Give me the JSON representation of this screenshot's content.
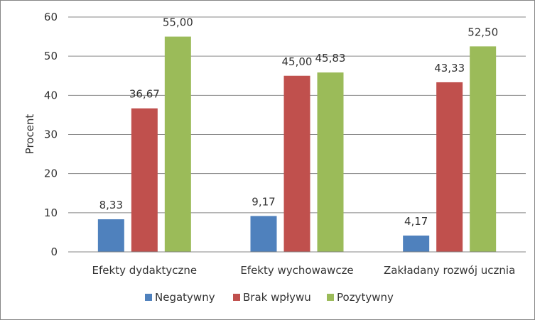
{
  "chart_data": {
    "type": "bar",
    "ylabel": "Procent",
    "ylim": [
      0,
      60
    ],
    "ytick_step": 10,
    "ytick_labels": [
      "0",
      "10",
      "20",
      "30",
      "40",
      "50",
      "60"
    ],
    "grid": true,
    "legend_position": "bottom",
    "categories": [
      "Efekty dydaktyczne",
      "Efekty wychowawcze",
      "Zakładany rozwój ucznia"
    ],
    "series": [
      {
        "name": "Negatywny",
        "color": "#4f81bd",
        "values": [
          8.33,
          9.17,
          4.17
        ],
        "labels": [
          "8,33",
          "9,17",
          "4,17"
        ]
      },
      {
        "name": "Brak wpływu",
        "color": "#c0504d",
        "values": [
          36.67,
          45.0,
          43.33
        ],
        "labels": [
          "36,67",
          "45,00",
          "43,33"
        ]
      },
      {
        "name": "Pozytywny",
        "color": "#9bbb59",
        "values": [
          55.0,
          45.83,
          52.5
        ],
        "labels": [
          "55,00",
          "45,83",
          "52,50"
        ]
      }
    ]
  }
}
